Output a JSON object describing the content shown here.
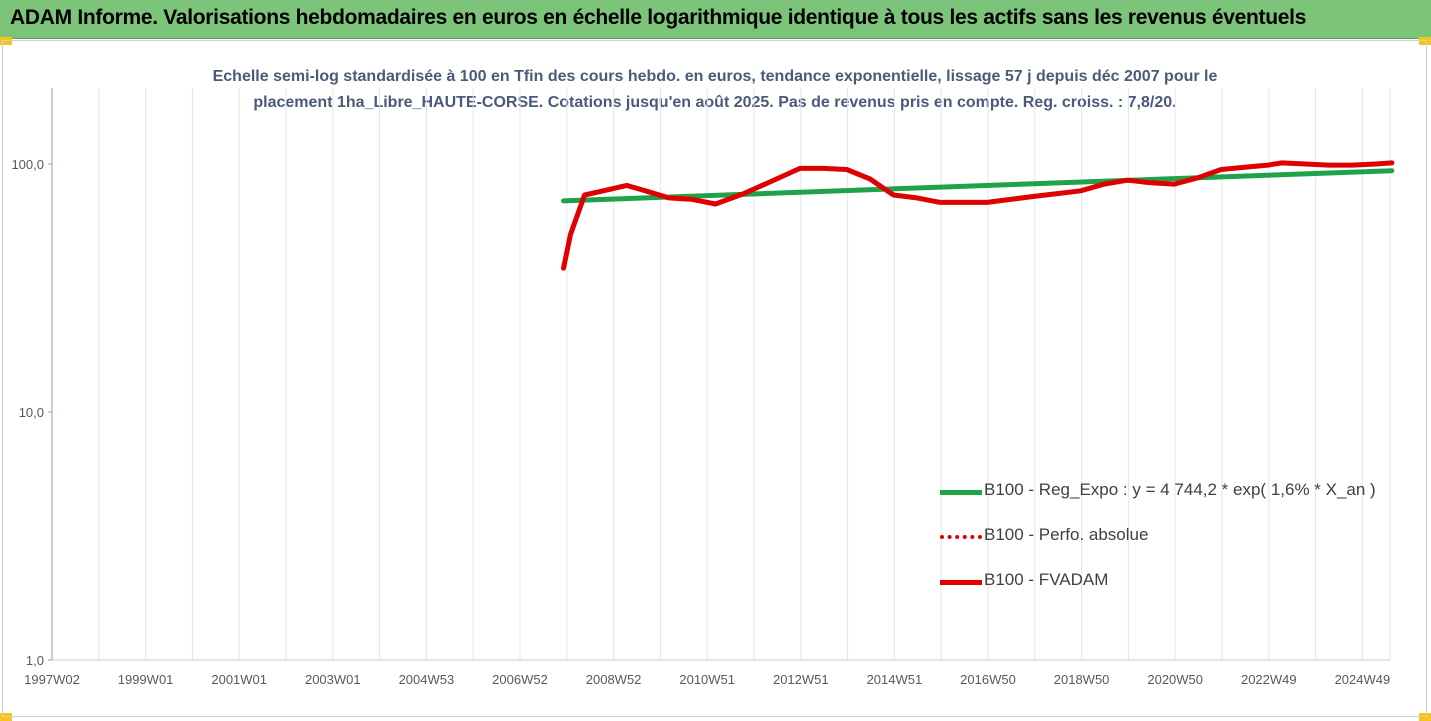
{
  "header": {
    "title": "ADAM Informe. Valorisations hebdomadaires en euros en échelle logarithmique identique à tous les actifs sans les revenus éventuels"
  },
  "colors": {
    "banner": "#7cc47a",
    "trend": "#1fa24a",
    "fvadam": "#e00000",
    "perfo": "#e00000",
    "grid": "#dfe6ee",
    "subtitle": "#4a5a78"
  },
  "chart_data": {
    "type": "line",
    "subtitle_line1": "Echelle semi-log standardisée à 100 en Tfin des cours hebdo. en euros, tendance exponentielle, lissage 57 j depuis déc 2007 pour le",
    "subtitle_line2": "placement 1ha_Libre_HAUTE-CORSE. Cotations jusqu'en août 2025. Pas de revenus pris en compte. Reg. croiss. : 7,8/20.",
    "y_scale": "log",
    "ylim": [
      1,
      200
    ],
    "y_ticks": [
      "100,0",
      "10,0",
      "1,0"
    ],
    "x_ticks": [
      "1997W02",
      "1999W01",
      "2001W01",
      "2003W01",
      "2004W53",
      "2006W52",
      "2008W52",
      "2010W51",
      "2012W51",
      "2014W51",
      "2016W50",
      "2018W50",
      "2020W50",
      "2022W49",
      "2024W49"
    ],
    "grid": "vertical",
    "legend_position": "right",
    "series": [
      {
        "name": "B100 - Reg_Expo : y = 4 744,2 * exp( 1,6% *  X_an )",
        "style": "solid",
        "x": [
          2007.95,
          2025.65
        ],
        "y": [
          71,
          94
        ]
      },
      {
        "name": "B100 - Perfo. absolue",
        "style": "dotted",
        "x": [],
        "y": []
      },
      {
        "name": "B100 - FVADAM",
        "style": "solid",
        "x": [
          2007.95,
          2008.1,
          2008.4,
          2008.8,
          2009.3,
          2009.7,
          2010.2,
          2010.7,
          2011.2,
          2011.8,
          2012.5,
          2013.0,
          2013.5,
          2014.0,
          2014.5,
          2015.0,
          2015.5,
          2016.0,
          2016.5,
          2017.0,
          2017.5,
          2018.0,
          2018.5,
          2019.0,
          2019.5,
          2020.0,
          2020.5,
          2021.0,
          2021.5,
          2022.0,
          2022.5,
          2023.0,
          2023.3,
          2023.8,
          2024.3,
          2024.8,
          2025.3,
          2025.65
        ],
        "y": [
          38,
          52,
          75,
          78,
          82,
          78,
          73,
          72,
          69,
          76,
          87,
          96,
          96,
          95,
          87,
          75,
          73,
          70,
          70,
          70,
          72,
          74,
          76,
          78,
          83,
          86,
          84,
          83,
          88,
          95,
          97,
          99,
          101,
          100,
          99,
          99,
          100,
          101
        ]
      }
    ]
  }
}
